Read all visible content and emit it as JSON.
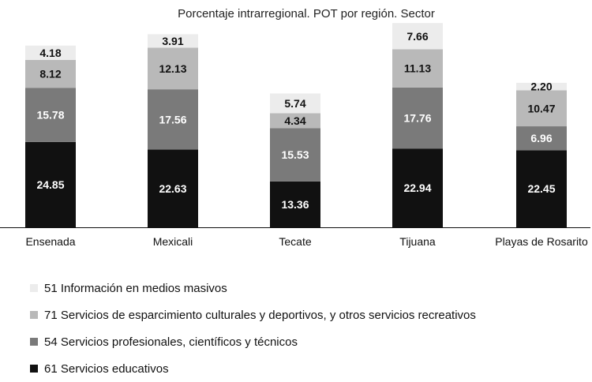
{
  "chart_data": {
    "type": "bar",
    "stacked": true,
    "title": "Porcentaje intrarregional. POT por región. Sector",
    "xlabel": "",
    "ylabel": "",
    "ylim": [
      0,
      57
    ],
    "grid": false,
    "legend_position": "bottom-left",
    "categories": [
      "Ensenada",
      "Mexicali",
      "Tecate",
      "Tijuana",
      "Playas de Rosarito"
    ],
    "series": [
      {
        "name": "61 Servicios educativos",
        "color": "#111111",
        "label_color": "#ffffff",
        "values": [
          24.85,
          22.63,
          13.36,
          22.94,
          22.45
        ],
        "labels": [
          "24.85",
          "22.63",
          "13.36",
          "22.94",
          "22.45"
        ]
      },
      {
        "name": "54 Servicios profesionales, científicos y técnicos",
        "color": "#7a7a7a",
        "label_color": "#ffffff",
        "values": [
          15.78,
          17.56,
          15.53,
          17.76,
          6.96
        ],
        "labels": [
          "15.78",
          "17.56",
          "15.53",
          "17.76",
          "6.96"
        ]
      },
      {
        "name": "71 Servicios de esparcimiento culturales y deportivos, y otros servicios recreativos",
        "color": "#b9b9b9",
        "label_color": "#111111",
        "values": [
          8.12,
          12.13,
          4.34,
          11.13,
          10.47
        ],
        "labels": [
          "8.12",
          "12.13",
          "4.34",
          "11.13",
          "10.47"
        ]
      },
      {
        "name": "51 Información en medios masivos",
        "color": "#ececec",
        "label_color": "#111111",
        "values": [
          4.18,
          3.91,
          5.74,
          7.66,
          2.2
        ],
        "labels": [
          "4.18",
          "3.91",
          "5.74",
          "7.66",
          "2.20"
        ]
      }
    ],
    "legend_order": [
      3,
      2,
      1,
      0
    ]
  }
}
